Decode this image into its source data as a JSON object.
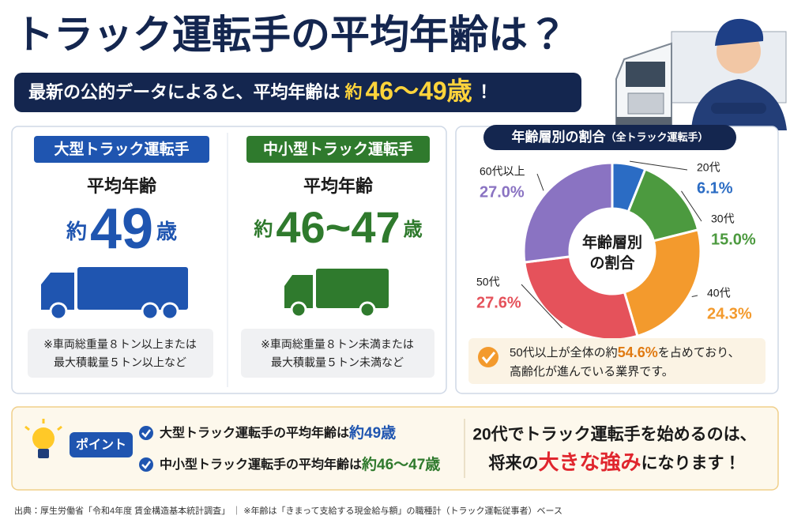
{
  "title": "トラック運転手の平均年齢は？",
  "banner": {
    "text": "最新の公的データによると、平均年齢は",
    "approx": "約",
    "range": "46〜49歳",
    "end": "！"
  },
  "cards": [
    {
      "label": "大型トラック運転手",
      "heading": "平均年齢",
      "approx": "約",
      "age": "49",
      "unit": "歳",
      "note": [
        "※車両総重量８トン以上または",
        "最大積載量５トン以上など"
      ]
    },
    {
      "label": "中小型トラック運転手",
      "heading": "平均年齢",
      "approx": "約",
      "age": "46~47",
      "unit": "歳",
      "note": [
        "※車両総重量８トン未満または",
        "最大積載量５トン未満など"
      ]
    }
  ],
  "chart_data": {
    "type": "pie",
    "title": "年齢層別の割合",
    "subtitle": "（全トラック運転手）",
    "center_label": [
      "年齢層別",
      "の割合"
    ],
    "categories": [
      "20代",
      "30代",
      "40代",
      "50代",
      "60代以上"
    ],
    "values": [
      6.1,
      15.0,
      24.3,
      27.6,
      27.0
    ],
    "value_labels": [
      "6.1%",
      "15.0%",
      "24.3%",
      "27.6%",
      "27.0%"
    ],
    "colors": [
      "#2b6cc4",
      "#4c9a3f",
      "#f39a2d",
      "#e5525b",
      "#8a73c2"
    ]
  },
  "insight": {
    "before": "50代以上が全体の約",
    "highlight": "54.6%",
    "after": "を占めており、",
    "line2": "高齢化が進んでいる業界です。"
  },
  "point": {
    "label": "ポイント",
    "items": [
      {
        "text": "大型トラック運転手の平均年齢は",
        "highlight": "約49歳"
      },
      {
        "text": "中小型トラック運転手の平均年齢は",
        "highlight": "約46〜47歳"
      }
    ],
    "message": {
      "line1": "20代でトラック運転手を始めるのは、",
      "before": "将来の",
      "highlight": "大きな強み",
      "after": "になります！"
    }
  },
  "source": "出典：厚生労働省「令和4年度 賃金構造基本統計調査」 ｜ ※年齢は「きまって支給する現金給与額」の職種計（トラック運転従事者）ベース"
}
